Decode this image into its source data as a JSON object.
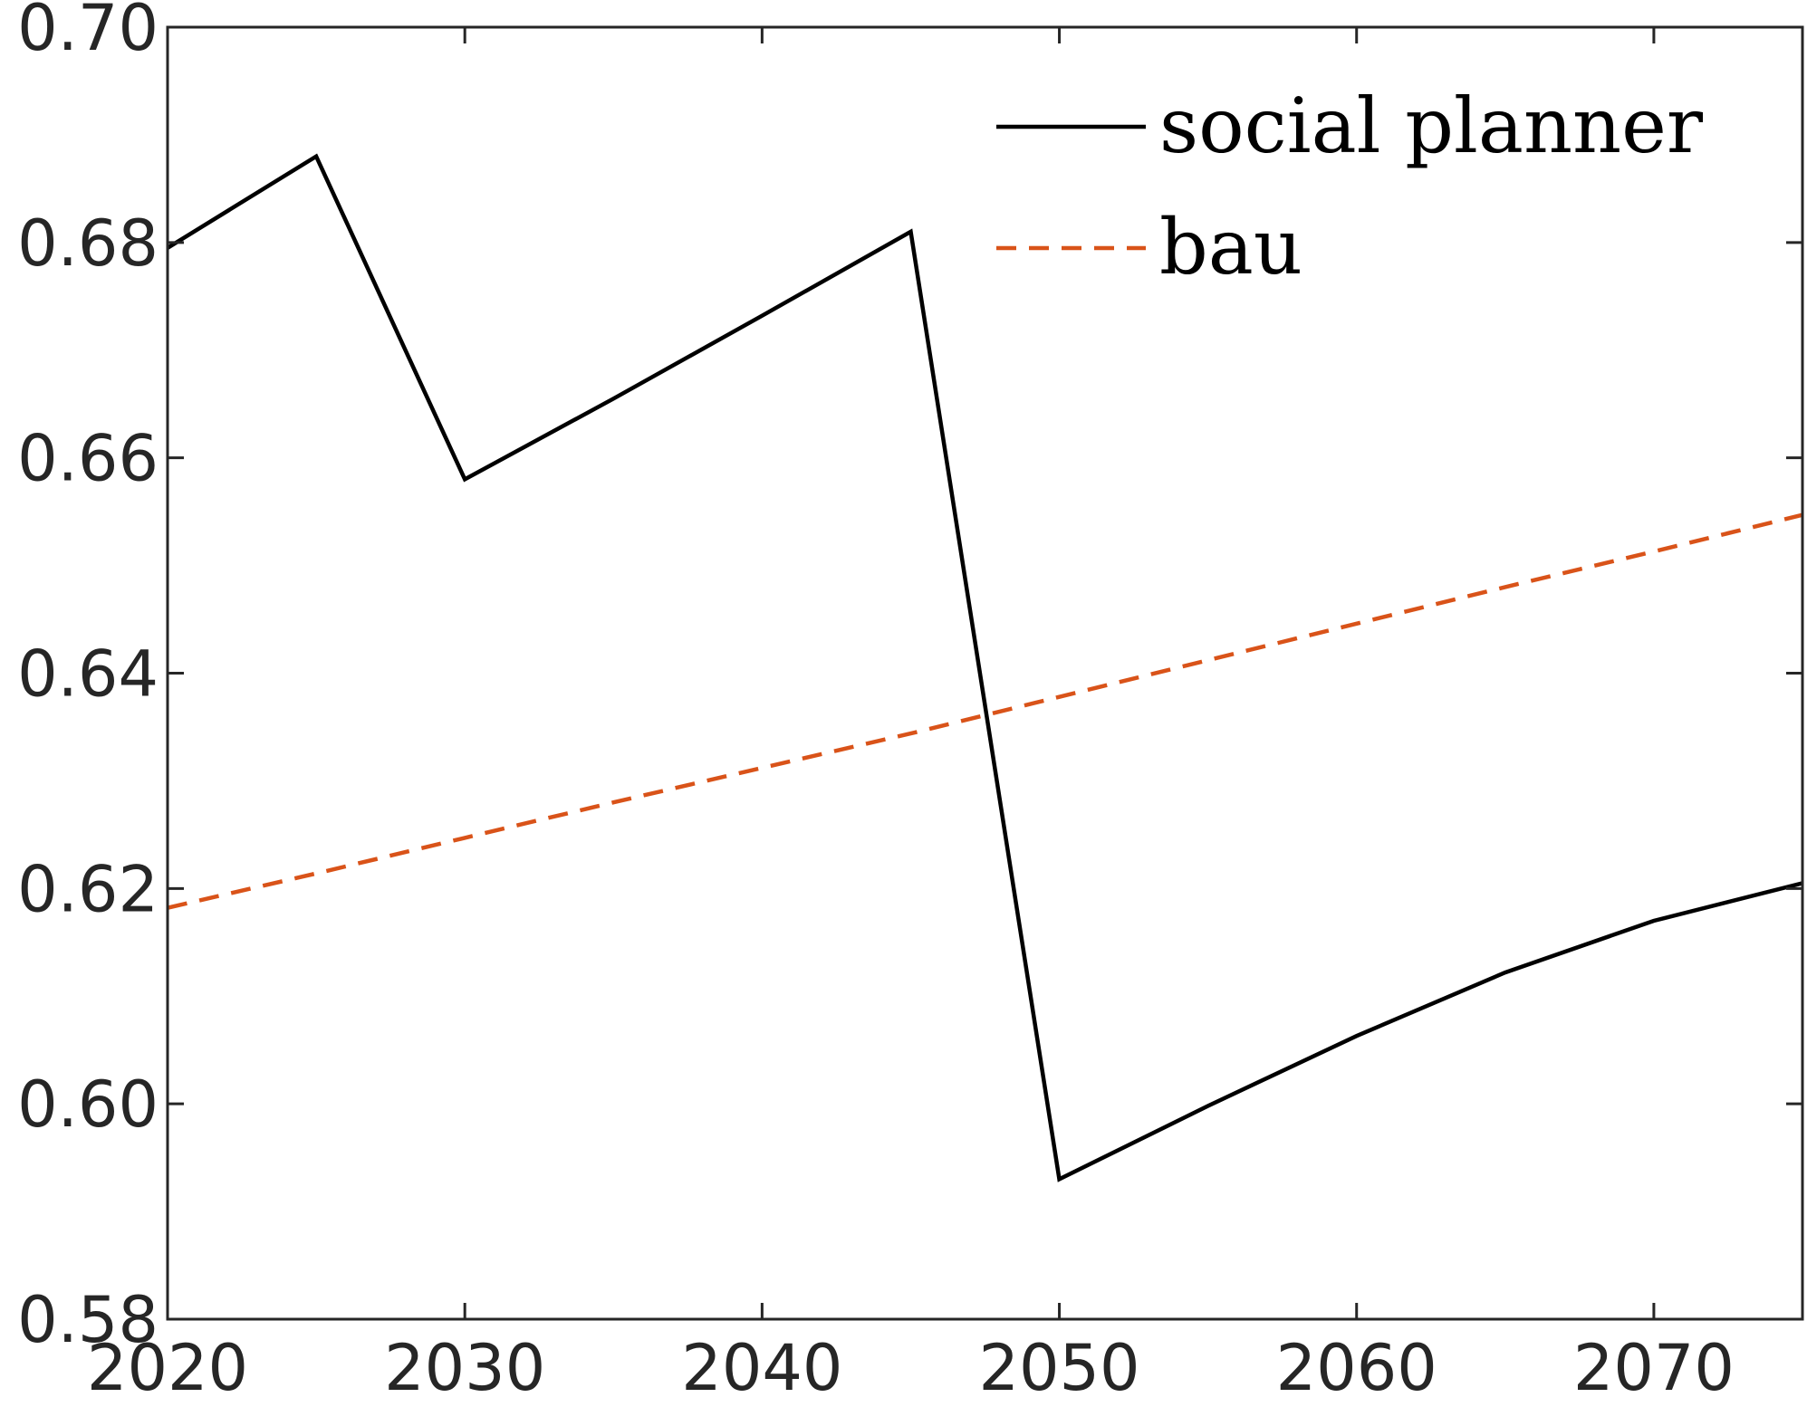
{
  "chart_data": {
    "type": "line",
    "title": "",
    "xlabel": "",
    "ylabel": "",
    "xlim": [
      2020,
      2075
    ],
    "ylim": [
      0.58,
      0.7
    ],
    "xticks": [
      2020,
      2030,
      2040,
      2050,
      2060,
      2070
    ],
    "xtick_labels": [
      "2020",
      "2030",
      "2040",
      "2050",
      "2060",
      "2070"
    ],
    "yticks": [
      0.58,
      0.6,
      0.62,
      0.64,
      0.66,
      0.68,
      0.7
    ],
    "ytick_labels": [
      "0.58",
      "0.60",
      "0.62",
      "0.64",
      "0.66",
      "0.68",
      "0.70"
    ],
    "grid": false,
    "legend_position": "top-right",
    "series": [
      {
        "name": "social planner",
        "color": "#000000",
        "style": "solid",
        "x": [
          2020,
          2025,
          2030,
          2035,
          2040,
          2045,
          2050,
          2055,
          2060,
          2065,
          2070,
          2075
        ],
        "y": [
          0.6795,
          0.688,
          0.658,
          0.6655,
          0.6732,
          0.681,
          0.593,
          0.5998,
          0.6063,
          0.6122,
          0.617,
          0.6205
        ]
      },
      {
        "name": "bau",
        "color": "#D95319",
        "style": "dashed",
        "x": [
          2020,
          2025,
          2030,
          2035,
          2040,
          2045,
          2050,
          2055,
          2060,
          2065,
          2070,
          2075
        ],
        "y": [
          0.6182,
          0.6214,
          0.6247,
          0.628,
          0.6312,
          0.6344,
          0.6378,
          0.6412,
          0.6446,
          0.648,
          0.6513,
          0.6547
        ]
      }
    ]
  }
}
